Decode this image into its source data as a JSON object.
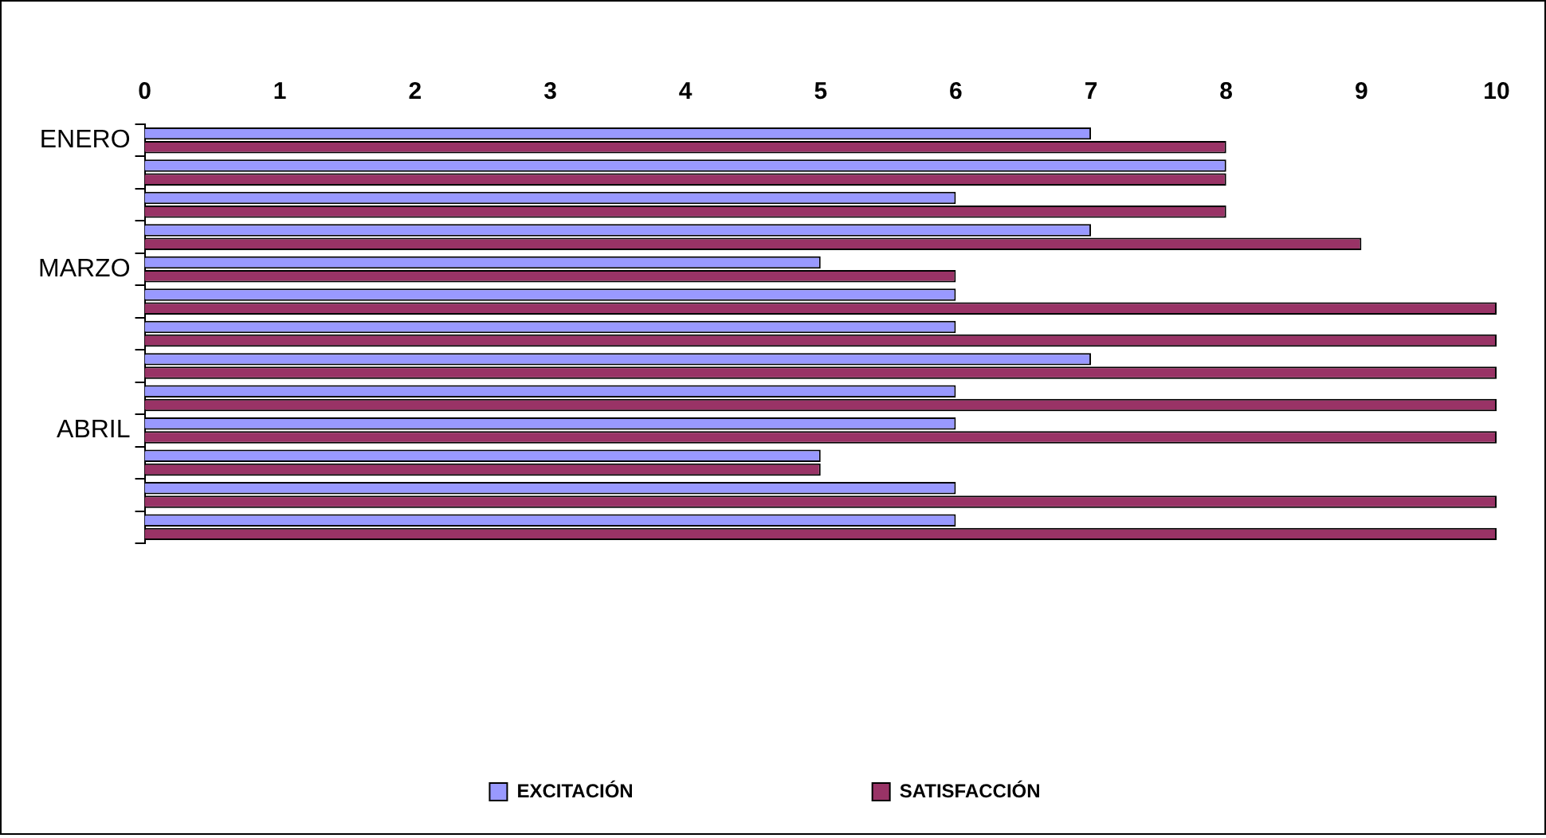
{
  "chart_data": {
    "type": "bar",
    "orientation": "horizontal",
    "categories": [
      "ENERO",
      null,
      null,
      null,
      "MARZO",
      null,
      null,
      null,
      null,
      "ABRIL",
      null,
      null,
      null
    ],
    "series": [
      {
        "name": "EXCITACIÓN",
        "color": "#9999ff",
        "values": [
          7,
          8,
          6,
          7,
          5,
          6,
          6,
          7,
          6,
          6,
          5,
          6,
          6
        ]
      },
      {
        "name": "SATISFACCIÓN",
        "color": "#993366",
        "values": [
          8,
          8,
          8,
          9,
          6,
          10,
          10,
          10,
          10,
          10,
          5,
          10,
          10
        ]
      }
    ],
    "xlim": [
      0,
      10
    ],
    "xticks": [
      0,
      1,
      2,
      3,
      4,
      5,
      6,
      7,
      8,
      9,
      10
    ],
    "legend": "bottom"
  }
}
